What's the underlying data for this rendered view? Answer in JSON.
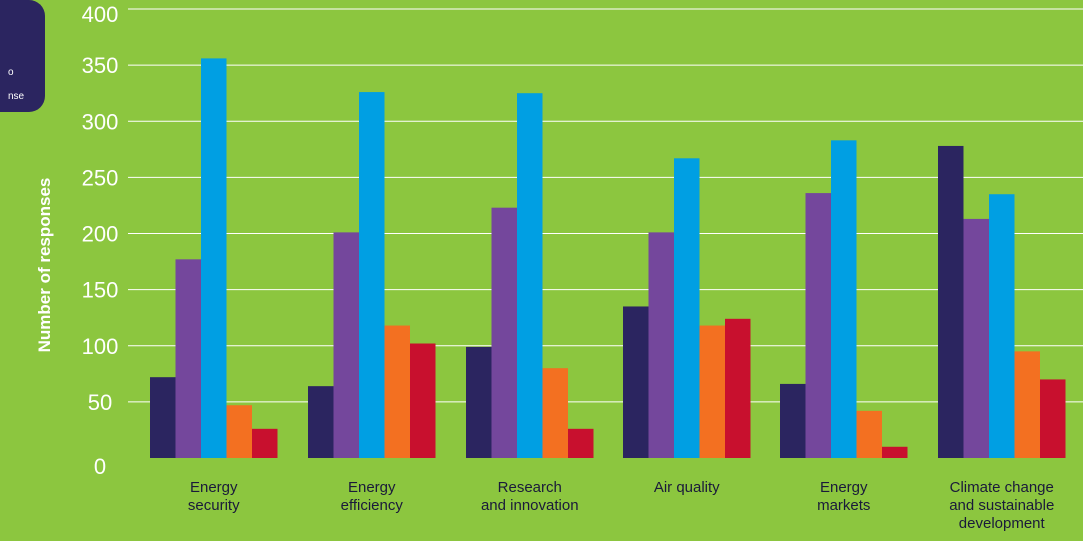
{
  "legend_fragment": {
    "line1": "o",
    "line2": "nse"
  },
  "colors": {
    "background": "#8cc63f",
    "legend_box": "#2b2560",
    "gridline": "#ffffff"
  },
  "chart_data": {
    "type": "bar",
    "ylabel": "Number of responses",
    "xlabel": "",
    "ylim": [
      0,
      400
    ],
    "yticks": [
      0,
      50,
      100,
      150,
      200,
      250,
      300,
      350,
      400
    ],
    "grid": true,
    "categories": [
      [
        "Energy",
        "security"
      ],
      [
        "Energy",
        "efficiency"
      ],
      [
        "Research",
        "and innovation"
      ],
      [
        "Air quality"
      ],
      [
        "Energy",
        "markets"
      ],
      [
        "Climate change",
        "and sustainable",
        "development"
      ]
    ],
    "series": [
      {
        "color": "#2b2560",
        "values": [
          72,
          64,
          99,
          135,
          66,
          278
        ]
      },
      {
        "color": "#74479c",
        "values": [
          177,
          201,
          223,
          201,
          236,
          213
        ]
      },
      {
        "color": "#009fe3",
        "values": [
          356,
          326,
          325,
          267,
          283,
          235
        ]
      },
      {
        "color": "#f37021",
        "values": [
          47,
          118,
          80,
          118,
          42,
          95
        ]
      },
      {
        "color": "#c8102e",
        "values": [
          26,
          102,
          26,
          124,
          10,
          70
        ]
      }
    ]
  }
}
